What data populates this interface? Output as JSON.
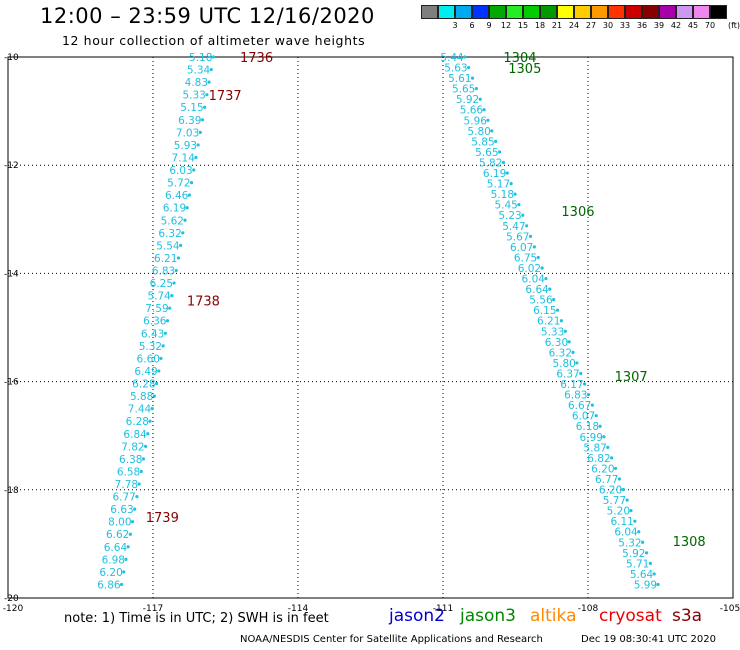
{
  "title": "12:00 – 23:59 UTC 12/16/2020",
  "subtitle": "12 hour collection of altimeter wave heights",
  "scale": {
    "unit": "(ft)",
    "bins": [
      {
        "label": "",
        "color": "#7f7f7f"
      },
      {
        "label": "3",
        "color": "#00eeee"
      },
      {
        "label": "6",
        "color": "#00aaee"
      },
      {
        "label": "9",
        "color": "#0033ff"
      },
      {
        "label": "12",
        "color": "#00aa00"
      },
      {
        "label": "15",
        "color": "#22ee22"
      },
      {
        "label": "18",
        "color": "#00cc00"
      },
      {
        "label": "21",
        "color": "#009900"
      },
      {
        "label": "24",
        "color": "#ffff00"
      },
      {
        "label": "27",
        "color": "#ffcc00"
      },
      {
        "label": "30",
        "color": "#ff9900"
      },
      {
        "label": "33",
        "color": "#ff3300"
      },
      {
        "label": "36",
        "color": "#cc0000"
      },
      {
        "label": "39",
        "color": "#880000"
      },
      {
        "label": "42",
        "color": "#aa00aa"
      },
      {
        "label": "45",
        "color": "#cc99ee"
      },
      {
        "label": "70",
        "color": "#ee88ee"
      },
      {
        "label": "",
        "color": "#000000"
      }
    ]
  },
  "chart_data": {
    "type": "scatter",
    "xlim": [
      -120,
      -105
    ],
    "ylim": [
      -20,
      -10
    ],
    "x_ticks": [
      "-120",
      "-117",
      "-114",
      "-111",
      "-108",
      "-105"
    ],
    "x_tick_values": [
      -120,
      -117,
      -114,
      -111,
      -108,
      -105
    ],
    "y_ticks": [
      "-10",
      "-12",
      "-14",
      "-16",
      "-18",
      "-20"
    ],
    "y_tick_values": [
      -10,
      -12,
      -14,
      -16,
      -18,
      -20
    ],
    "grid": true,
    "tracks": [
      {
        "name": "track-west",
        "color": "#20c0e0",
        "lon_start": -115.75,
        "lat_start": -10.0,
        "lon_end": -117.65,
        "lat_end": -19.75,
        "values": [
          "5.18",
          "5.34",
          "4.83",
          "5.33",
          "5.15",
          "6.39",
          "7.03",
          "5.93",
          "7.14",
          "6.03",
          "5.72",
          "6.46",
          "6.19",
          "5.62",
          "6.32",
          "5.54",
          "6.21",
          "6.83",
          "6.25",
          "5.74",
          "7.59",
          "6.36",
          "6.43",
          "5.32",
          "6.60",
          "6.49",
          "6.28",
          "5.88",
          "7.44",
          "6.28",
          "6.84",
          "7.82",
          "6.38",
          "6.58",
          "7.78",
          "6.77",
          "6.63",
          "8.00",
          "6.62",
          "6.64",
          "6.98",
          "6.20",
          "6.86"
        ]
      },
      {
        "name": "track-east",
        "color": "#20c0e0",
        "lon_start": -110.55,
        "lat_start": -10.0,
        "lon_end": -106.55,
        "lat_end": -19.75,
        "values": [
          "5.44",
          "5.63",
          "5.61",
          "5.65",
          "5.92",
          "5.66",
          "5.96",
          "5.80",
          "5.85",
          "5.65",
          "5.82",
          "6.19",
          "5.17",
          "5.18",
          "5.45",
          "5.23",
          "5.47",
          "5.67",
          "6.07",
          "6.75",
          "6.02",
          "6.04",
          "6.64",
          "5.56",
          "6.15",
          "6.21",
          "5.33",
          "6.30",
          "6.32",
          "5.80",
          "6.37",
          "6.17",
          "6.83",
          "6.67",
          "6.07",
          "6.18",
          "6.99",
          "5.87",
          "6.82",
          "6.20",
          "6.77",
          "6.20",
          "5.77",
          "5.20",
          "6.11",
          "6.04",
          "5.32",
          "5.92",
          "5.71",
          "5.64",
          "5.99"
        ]
      }
    ],
    "time_labels": [
      {
        "text": "1736",
        "color": "#880000",
        "lon": -115.2,
        "lat": -10.0
      },
      {
        "text": "1737",
        "color": "#880000",
        "lon": -115.85,
        "lat": -10.7
      },
      {
        "text": "1738",
        "color": "#880000",
        "lon": -116.3,
        "lat": -14.5
      },
      {
        "text": "1739",
        "color": "#880000",
        "lon": -117.15,
        "lat": -18.5
      },
      {
        "text": "1304",
        "color": "#006600",
        "lon": -109.75,
        "lat": -10.0
      },
      {
        "text": "1305",
        "color": "#006600",
        "lon": -109.65,
        "lat": -10.2
      },
      {
        "text": "1306",
        "color": "#006600",
        "lon": -108.55,
        "lat": -12.85
      },
      {
        "text": "1307",
        "color": "#006600",
        "lon": -107.45,
        "lat": -15.9
      },
      {
        "text": "1308",
        "color": "#006600",
        "lon": -106.25,
        "lat": -18.95
      }
    ]
  },
  "note": "note: 1) Time is in UTC; 2) SWH is in feet",
  "legend": [
    {
      "label": "jason2",
      "color": "#0000cc"
    },
    {
      "label": "jason3",
      "color": "#008800"
    },
    {
      "label": "altika",
      "color": "#ff8800"
    },
    {
      "label": "cryosat",
      "color": "#ee0000"
    },
    {
      "label": "s3a",
      "color": "#880000"
    }
  ],
  "footer": {
    "center": "NOAA/NESDIS Center for Satellite Applications and Research",
    "timestamp": "Dec 19 08:30:41 UTC 2020"
  }
}
